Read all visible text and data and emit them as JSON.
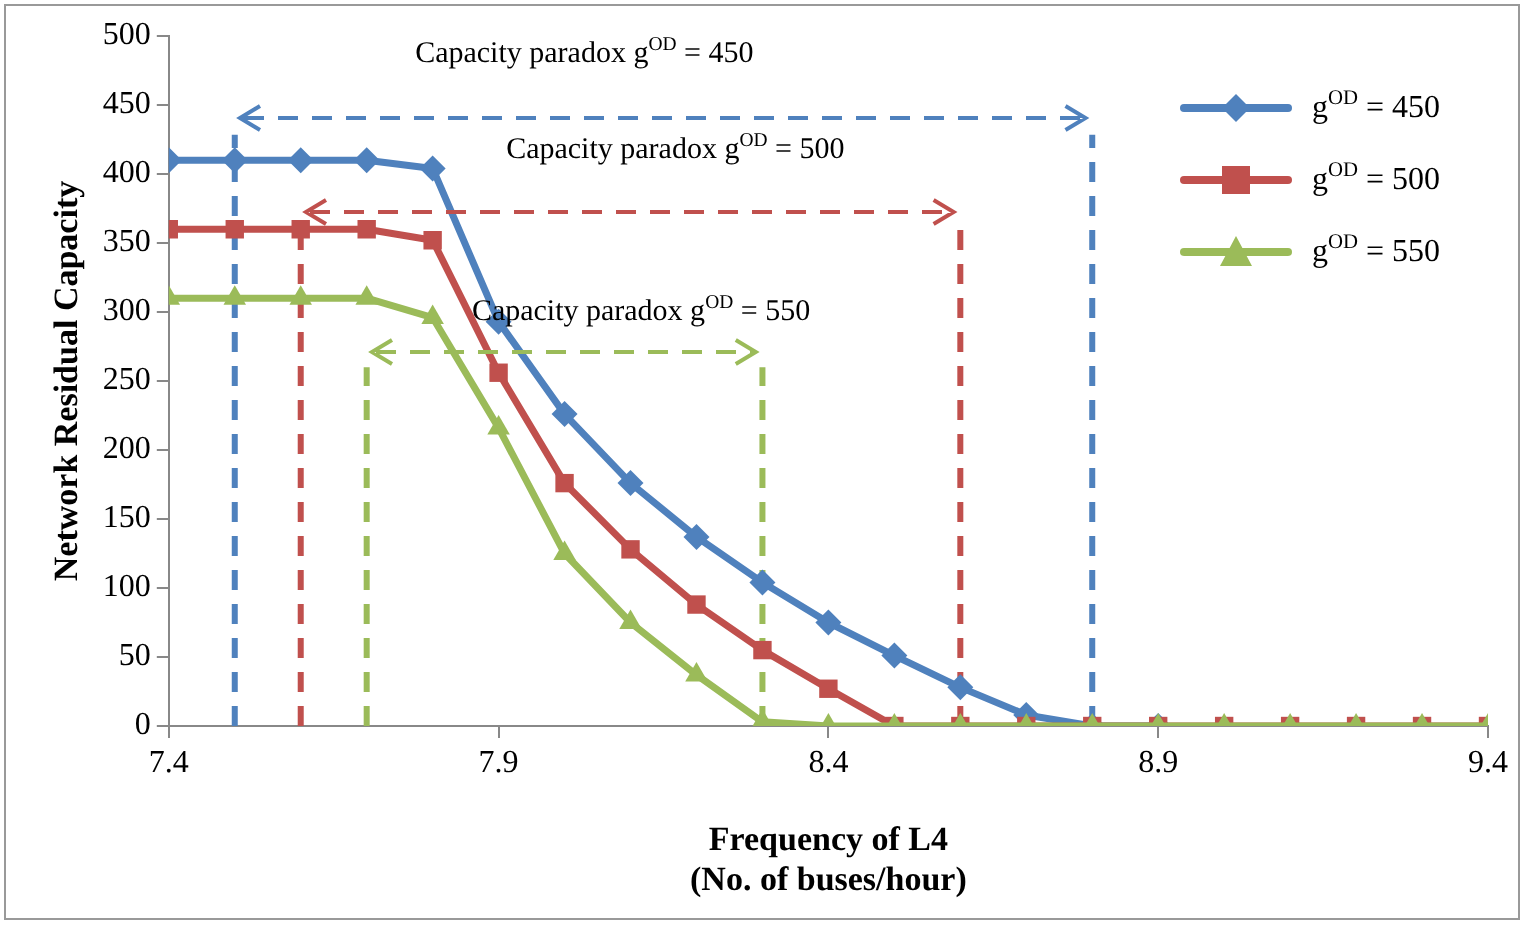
{
  "chart_data": {
    "type": "line",
    "xlabel": "Frequency of L4\n(No. of buses/hour)",
    "ylabel": "Network Residual Capacity",
    "x": [
      7.4,
      7.5,
      7.6,
      7.7,
      7.8,
      7.9,
      8.0,
      8.1,
      8.2,
      8.3,
      8.4,
      8.5,
      8.6,
      8.7,
      8.8,
      8.9,
      9.0,
      9.1,
      9.2,
      9.3,
      9.4
    ],
    "series": [
      {
        "name": "g$^{OD}$ = 450",
        "color": "#4f81bd",
        "marker": "diamond",
        "values": [
          410,
          410,
          410,
          410,
          404,
          293,
          226,
          176,
          137,
          104,
          75,
          51,
          28,
          8,
          0,
          0,
          null,
          null,
          null,
          null,
          null
        ]
      },
      {
        "name": "g$^{OD}$ = 500",
        "color": "#c0504d",
        "marker": "square",
        "values": [
          360,
          360,
          360,
          360,
          352,
          256,
          176,
          128,
          88,
          55,
          27,
          0,
          0,
          0,
          0,
          0,
          0,
          0,
          0,
          0,
          0
        ]
      },
      {
        "name": "g$^{OD}$ = 550",
        "color": "#9bbb59",
        "marker": "triangle",
        "values": [
          310,
          310,
          310,
          310,
          296,
          216,
          125,
          75,
          37,
          3,
          0,
          0,
          0,
          0,
          0,
          0,
          0,
          0,
          0,
          0,
          0
        ]
      }
    ],
    "xlim": [
      7.4,
      9.4
    ],
    "xticks": [
      7.4,
      7.9,
      8.4,
      8.9,
      9.4
    ],
    "ylim": [
      0,
      500
    ],
    "yticks": [
      0,
      50,
      100,
      150,
      200,
      250,
      300,
      350,
      400,
      450,
      500
    ],
    "grid": false,
    "legend": "top right",
    "line_style": "solid",
    "ref_lines": [
      {
        "axis": "x",
        "value": 7.5,
        "color": "#4f81bd",
        "line_style": "dashed"
      },
      {
        "axis": "x",
        "value": 8.8,
        "color": "#4f81bd",
        "line_style": "dashed"
      },
      {
        "axis": "x",
        "value": 7.6,
        "color": "#c0504d",
        "line_style": "dashed"
      },
      {
        "axis": "x",
        "value": 8.6,
        "color": "#c0504d",
        "line_style": "dashed"
      },
      {
        "axis": "x",
        "value": 7.7,
        "color": "#9bbb59",
        "line_style": "dashed"
      },
      {
        "axis": "x",
        "value": 8.3,
        "color": "#9bbb59",
        "line_style": "dashed"
      }
    ],
    "annotations": [
      "Capacity paradox g$^{OD}$ = 450",
      "Capacity paradox g$^{OD}$ = 500",
      "Capacity paradox g$^{OD}$ = 550"
    ]
  }
}
